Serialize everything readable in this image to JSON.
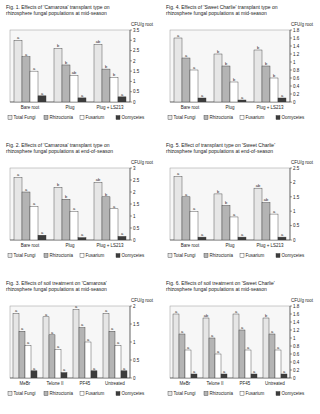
{
  "chart_data": [
    {
      "type": "bar",
      "title": "Fig. 1.  Effects of 'Camarosa' transplant type on rhizosphere fungal populations at mid-season",
      "y_label": "CFU/g root",
      "categories": [
        "Bare root",
        "Plug",
        "Plug + LS213"
      ],
      "series": [
        {
          "name": "Total Fungi",
          "color": "#e6e6e6",
          "values": [
            3.0,
            2.6,
            2.8
          ],
          "letters": [
            "a",
            "b",
            "ab"
          ]
        },
        {
          "name": "Rhizoctonia",
          "color": "#b4b4b4",
          "values": [
            2.2,
            1.8,
            1.6
          ],
          "letters": [
            "a",
            "b",
            "b"
          ]
        },
        {
          "name": "Fusarium",
          "color": "#ffffff",
          "values": [
            1.5,
            1.3,
            1.2
          ],
          "letters": [
            "a",
            "ab",
            "b"
          ]
        },
        {
          "name": "Oomycetes",
          "color": "#3c3c3c",
          "values": [
            0.3,
            0.2,
            0.25
          ],
          "letters": [
            "a",
            "a",
            "a"
          ]
        }
      ],
      "ylim": [
        0,
        3.5
      ],
      "yticks": [
        0,
        0.5,
        1,
        1.5,
        2,
        2.5,
        3,
        3.5
      ],
      "grid": false,
      "legend": "bottom"
    },
    {
      "type": "bar",
      "title": "Fig. 2.  Effects of 'Camarosa' transplant type on rhizosphere fungal populations at end-of-season",
      "y_label": "CFU/g root",
      "categories": [
        "Bare root",
        "Plug",
        "Plug + LS213"
      ],
      "series": [
        {
          "name": "Total Fungi",
          "color": "#e6e6e6",
          "values": [
            2.6,
            2.2,
            2.4
          ],
          "letters": [
            "a",
            "b",
            "ab"
          ]
        },
        {
          "name": "Rhizoctonia",
          "color": "#b4b4b4",
          "values": [
            2.0,
            1.7,
            1.8
          ],
          "letters": [
            "a",
            "b",
            "b"
          ]
        },
        {
          "name": "Fusarium",
          "color": "#ffffff",
          "values": [
            1.4,
            1.2,
            1.3
          ],
          "letters": [
            "a",
            "a",
            "a"
          ]
        },
        {
          "name": "Oomycetes",
          "color": "#3c3c3c",
          "values": [
            0.2,
            0.1,
            0.15
          ],
          "letters": [
            "a",
            "a",
            "a"
          ]
        }
      ],
      "ylim": [
        0,
        3
      ],
      "yticks": [
        0,
        0.5,
        1,
        1.5,
        2,
        2.5,
        3
      ],
      "grid": false,
      "legend": "bottom"
    },
    {
      "type": "bar",
      "title": "Fig. 3.  Effects of soil treatment on 'Camarosa' rhizosphere fungal populations at mid-season",
      "y_label": "CFU/g root",
      "categories": [
        "MeBr",
        "Telone II",
        "PF45",
        "Untreated"
      ],
      "series": [
        {
          "name": "Total Fungi",
          "color": "#e6e6e6",
          "values": [
            1.8,
            1.7,
            1.9,
            1.8
          ],
          "letters": [
            "a",
            "a",
            "a",
            "a"
          ]
        },
        {
          "name": "Rhizoctonia",
          "color": "#b4b4b4",
          "values": [
            1.3,
            1.2,
            1.4,
            1.3
          ],
          "letters": [
            "a",
            "a",
            "a",
            "a"
          ]
        },
        {
          "name": "Fusarium",
          "color": "#ffffff",
          "values": [
            0.9,
            0.8,
            1.0,
            0.9
          ],
          "letters": [
            "a",
            "a",
            "a",
            "a"
          ]
        },
        {
          "name": "Oomycetes",
          "color": "#3c3c3c",
          "values": [
            0.2,
            0.15,
            0.2,
            0.2
          ],
          "letters": [
            "a",
            "a",
            "a",
            "a"
          ]
        }
      ],
      "ylim": [
        0,
        2
      ],
      "yticks": [
        0,
        0.5,
        1,
        1.5,
        2
      ],
      "grid": false,
      "legend": "bottom"
    },
    {
      "type": "bar",
      "title": "Fig. 4.  Effects of 'Sweet Charlie' transplant type on rhizosphere fungal populations at mid-season",
      "y_label": "CFU/g root",
      "categories": [
        "Bare root",
        "Plug",
        "Plug + LS213"
      ],
      "series": [
        {
          "name": "Total Fungi",
          "color": "#e6e6e6",
          "values": [
            1.6,
            1.2,
            1.3
          ],
          "letters": [
            "a",
            "b",
            "b"
          ]
        },
        {
          "name": "Rhizoctonia",
          "color": "#b4b4b4",
          "values": [
            1.1,
            0.9,
            0.9
          ],
          "letters": [
            "a",
            "b",
            "b"
          ]
        },
        {
          "name": "Fusarium",
          "color": "#ffffff",
          "values": [
            0.8,
            0.5,
            0.6
          ],
          "letters": [
            "a",
            "b",
            "b"
          ]
        },
        {
          "name": "Oomycetes",
          "color": "#3c3c3c",
          "values": [
            0.1,
            0.05,
            0.1
          ],
          "letters": [
            "a",
            "a",
            "a"
          ]
        }
      ],
      "ylim": [
        0,
        1.8
      ],
      "yticks": [
        0,
        0.2,
        0.4,
        0.6,
        0.8,
        1,
        1.2,
        1.4,
        1.6,
        1.8
      ],
      "grid": false,
      "legend": "bottom"
    },
    {
      "type": "bar",
      "title": "Fig. 5.  Effect of transplant type on 'Sweet Charlie' rhizosphere fungal populations at end-of-season",
      "y_label": "CFU/g root",
      "categories": [
        "Bare root",
        "Plug",
        "Plug + LS213"
      ],
      "series": [
        {
          "name": "Total Fungi",
          "color": "#e6e6e6",
          "values": [
            2.2,
            1.6,
            1.8
          ],
          "letters": [
            "a",
            "b",
            "ab"
          ]
        },
        {
          "name": "Rhizoctonia",
          "color": "#b4b4b4",
          "values": [
            1.5,
            1.2,
            1.3
          ],
          "letters": [
            "a",
            "b",
            "ab"
          ]
        },
        {
          "name": "Fusarium",
          "color": "#ffffff",
          "values": [
            1.0,
            0.8,
            0.9
          ],
          "letters": [
            "a",
            "a",
            "a"
          ]
        },
        {
          "name": "Oomycetes",
          "color": "#3c3c3c",
          "values": [
            0.1,
            0.1,
            0.1
          ],
          "letters": [
            "a",
            "a",
            "a"
          ]
        }
      ],
      "ylim": [
        0,
        2.5
      ],
      "yticks": [
        0,
        0.5,
        1,
        1.5,
        2,
        2.5
      ],
      "grid": false,
      "legend": "bottom"
    },
    {
      "type": "bar",
      "title": "Fig. 6.  Effects of soil treatment on 'Sweet Charlie' rhizosphere fungal populations at mid-season",
      "y_label": "CFU/g root",
      "categories": [
        "MeBr",
        "Telone II",
        "PF45",
        "Untreated"
      ],
      "series": [
        {
          "name": "Total Fungi",
          "color": "#e6e6e6",
          "values": [
            1.6,
            1.5,
            1.6,
            1.5
          ],
          "letters": [
            "a",
            "ab",
            "a",
            "b"
          ]
        },
        {
          "name": "Rhizoctonia",
          "color": "#b4b4b4",
          "values": [
            1.1,
            1.0,
            1.2,
            1.1
          ],
          "letters": [
            "a",
            "a",
            "a",
            "a"
          ]
        },
        {
          "name": "Fusarium",
          "color": "#ffffff",
          "values": [
            0.7,
            0.6,
            0.7,
            0.7
          ],
          "letters": [
            "a",
            "a",
            "a",
            "a"
          ]
        },
        {
          "name": "Oomycetes",
          "color": "#3c3c3c",
          "values": [
            0.1,
            0.1,
            0.1,
            0.1
          ],
          "letters": [
            "a",
            "a",
            "a",
            "a"
          ]
        }
      ],
      "ylim": [
        0,
        1.8
      ],
      "yticks": [
        0,
        0.2,
        0.4,
        0.6,
        0.8,
        1,
        1.2,
        1.4,
        1.6,
        1.8
      ],
      "grid": false,
      "legend": "bottom"
    }
  ]
}
